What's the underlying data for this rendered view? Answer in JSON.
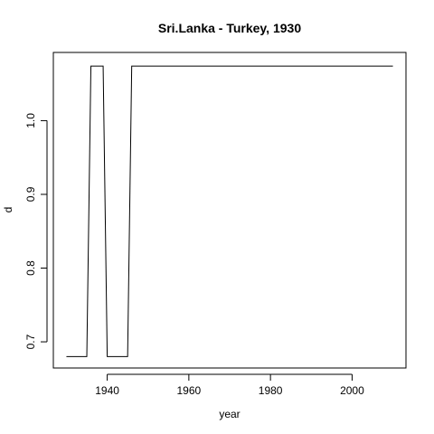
{
  "chart_data": {
    "type": "line",
    "title": "Sri.Lanka - Turkey, 1930",
    "xlabel": "year",
    "ylabel": "d",
    "xlim": [
      1926.8,
      2013.2
    ],
    "ylim": [
      0.6645,
      1.0925
    ],
    "x_ticks": [
      1940,
      1960,
      1980,
      2000
    ],
    "x_tick_labels": [
      "1940",
      "1960",
      "1980",
      "2000"
    ],
    "y_ticks": [
      0.7,
      0.8,
      0.9,
      1.0
    ],
    "y_tick_labels": [
      "0.7",
      "0.8",
      "0.9",
      "1.0"
    ],
    "grid": false,
    "series": [
      {
        "color": "#000000",
        "points": [
          [
            1930,
            0.68
          ],
          [
            1935,
            0.68
          ],
          [
            1936,
            1.074
          ],
          [
            1939,
            1.074
          ],
          [
            1940,
            0.68
          ],
          [
            1945,
            0.68
          ],
          [
            1946,
            1.074
          ],
          [
            2010,
            1.074
          ]
        ]
      }
    ]
  }
}
